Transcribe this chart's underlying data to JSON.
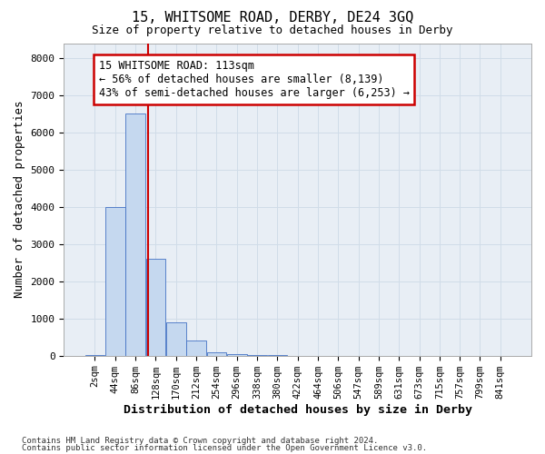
{
  "title1": "15, WHITSOME ROAD, DERBY, DE24 3GQ",
  "title2": "Size of property relative to detached houses in Derby",
  "xlabel": "Distribution of detached houses by size in Derby",
  "ylabel": "Number of detached properties",
  "bar_categories": [
    "2sqm",
    "44sqm",
    "86sqm",
    "128sqm",
    "170sqm",
    "212sqm",
    "254sqm",
    "296sqm",
    "338sqm",
    "380sqm",
    "422sqm",
    "464sqm",
    "506sqm",
    "547sqm",
    "589sqm",
    "631sqm",
    "673sqm",
    "715sqm",
    "757sqm",
    "799sqm",
    "841sqm"
  ],
  "bar_values": [
    5,
    4000,
    6500,
    2600,
    900,
    400,
    100,
    50,
    10,
    5,
    2,
    1,
    0,
    0,
    0,
    0,
    0,
    0,
    0,
    0,
    0
  ],
  "bar_color": "#c5d8ef",
  "bar_edge_color": "#4472c4",
  "grid_color": "#d0dce8",
  "bg_color": "#e8eef5",
  "vline_color": "#cc0000",
  "ylim": [
    0,
    8400
  ],
  "yticks": [
    0,
    1000,
    2000,
    3000,
    4000,
    5000,
    6000,
    7000,
    8000
  ],
  "annotation_line1": "15 WHITSOME ROAD: 113sqm",
  "annotation_line2": "← 56% of detached houses are smaller (8,139)",
  "annotation_line3": "43% of semi-detached houses are larger (6,253) →",
  "annotation_box_color": "#ffffff",
  "annotation_edge_color": "#cc0000",
  "footer1": "Contains HM Land Registry data © Crown copyright and database right 2024.",
  "footer2": "Contains public sector information licensed under the Open Government Licence v3.0.",
  "fig_width": 6.0,
  "fig_height": 5.0,
  "fig_dpi": 100
}
